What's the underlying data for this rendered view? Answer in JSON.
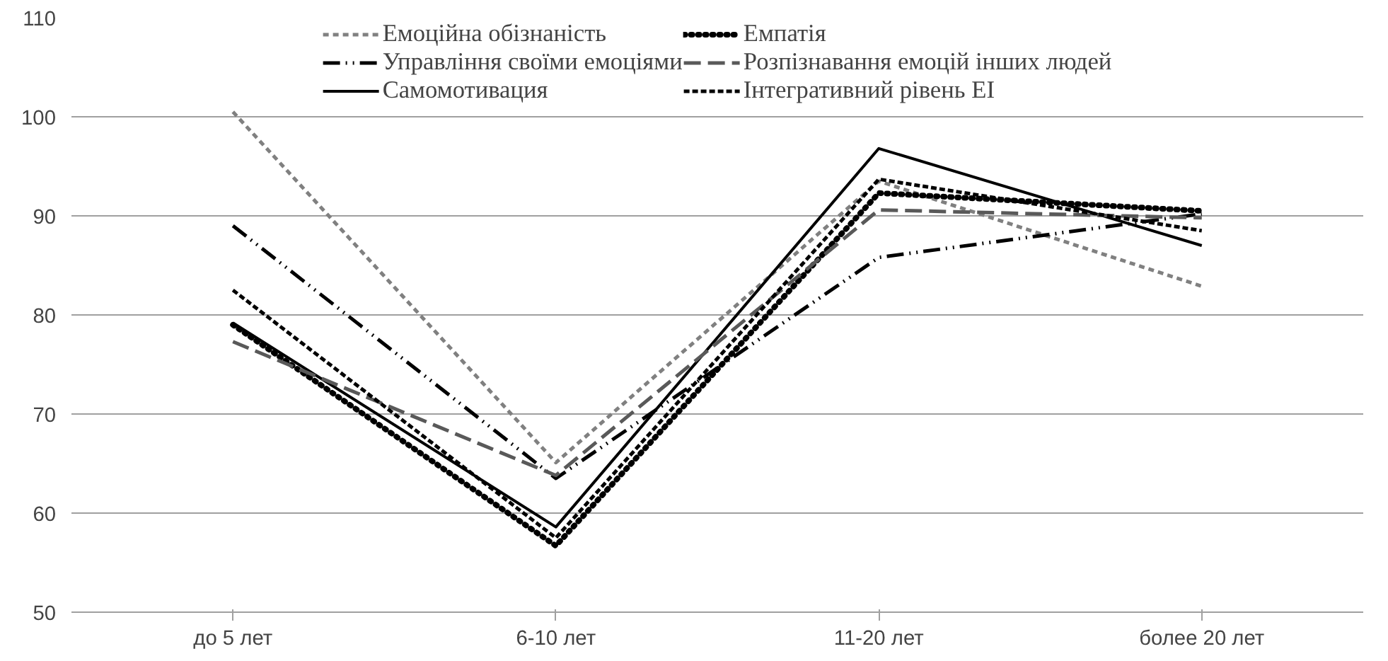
{
  "chart_data": {
    "type": "line",
    "categories": [
      "до 5 лет",
      "6-10 лет",
      "11-20 лет",
      "более 20 лет"
    ],
    "ylim": [
      50,
      110
    ],
    "yticks": [
      50,
      60,
      70,
      80,
      90,
      100,
      110
    ],
    "grid": "y",
    "legend": "top",
    "marker": "none",
    "series": [
      {
        "name": "Емоційна обізнаність",
        "color": "#808080",
        "line_style": "dashed",
        "values": [
          100.5,
          65.1,
          93.5,
          82.9
        ]
      },
      {
        "name": "Управління своїми емоціями",
        "color": "#000000",
        "line_style": "dashdot",
        "values": [
          89.0,
          63.5,
          85.8,
          90.2
        ]
      },
      {
        "name": "Самомотивация",
        "color": "#000000",
        "line_style": "solid",
        "values": [
          79.2,
          58.6,
          96.8,
          87.0
        ]
      },
      {
        "name": "Емпатія",
        "color": "#000000",
        "line_style": "dotted",
        "values": [
          79.0,
          56.7,
          92.3,
          90.5
        ]
      },
      {
        "name": "Розпізнавання емоцій інших людей",
        "color": "#595959",
        "line_style": "longdash",
        "values": [
          77.3,
          63.8,
          90.6,
          89.8
        ]
      },
      {
        "name": "Інтегративний рівень ЕІ",
        "color": "#000000",
        "line_style": "shortdash",
        "values": [
          82.5,
          57.5,
          93.7,
          88.5
        ]
      }
    ]
  }
}
